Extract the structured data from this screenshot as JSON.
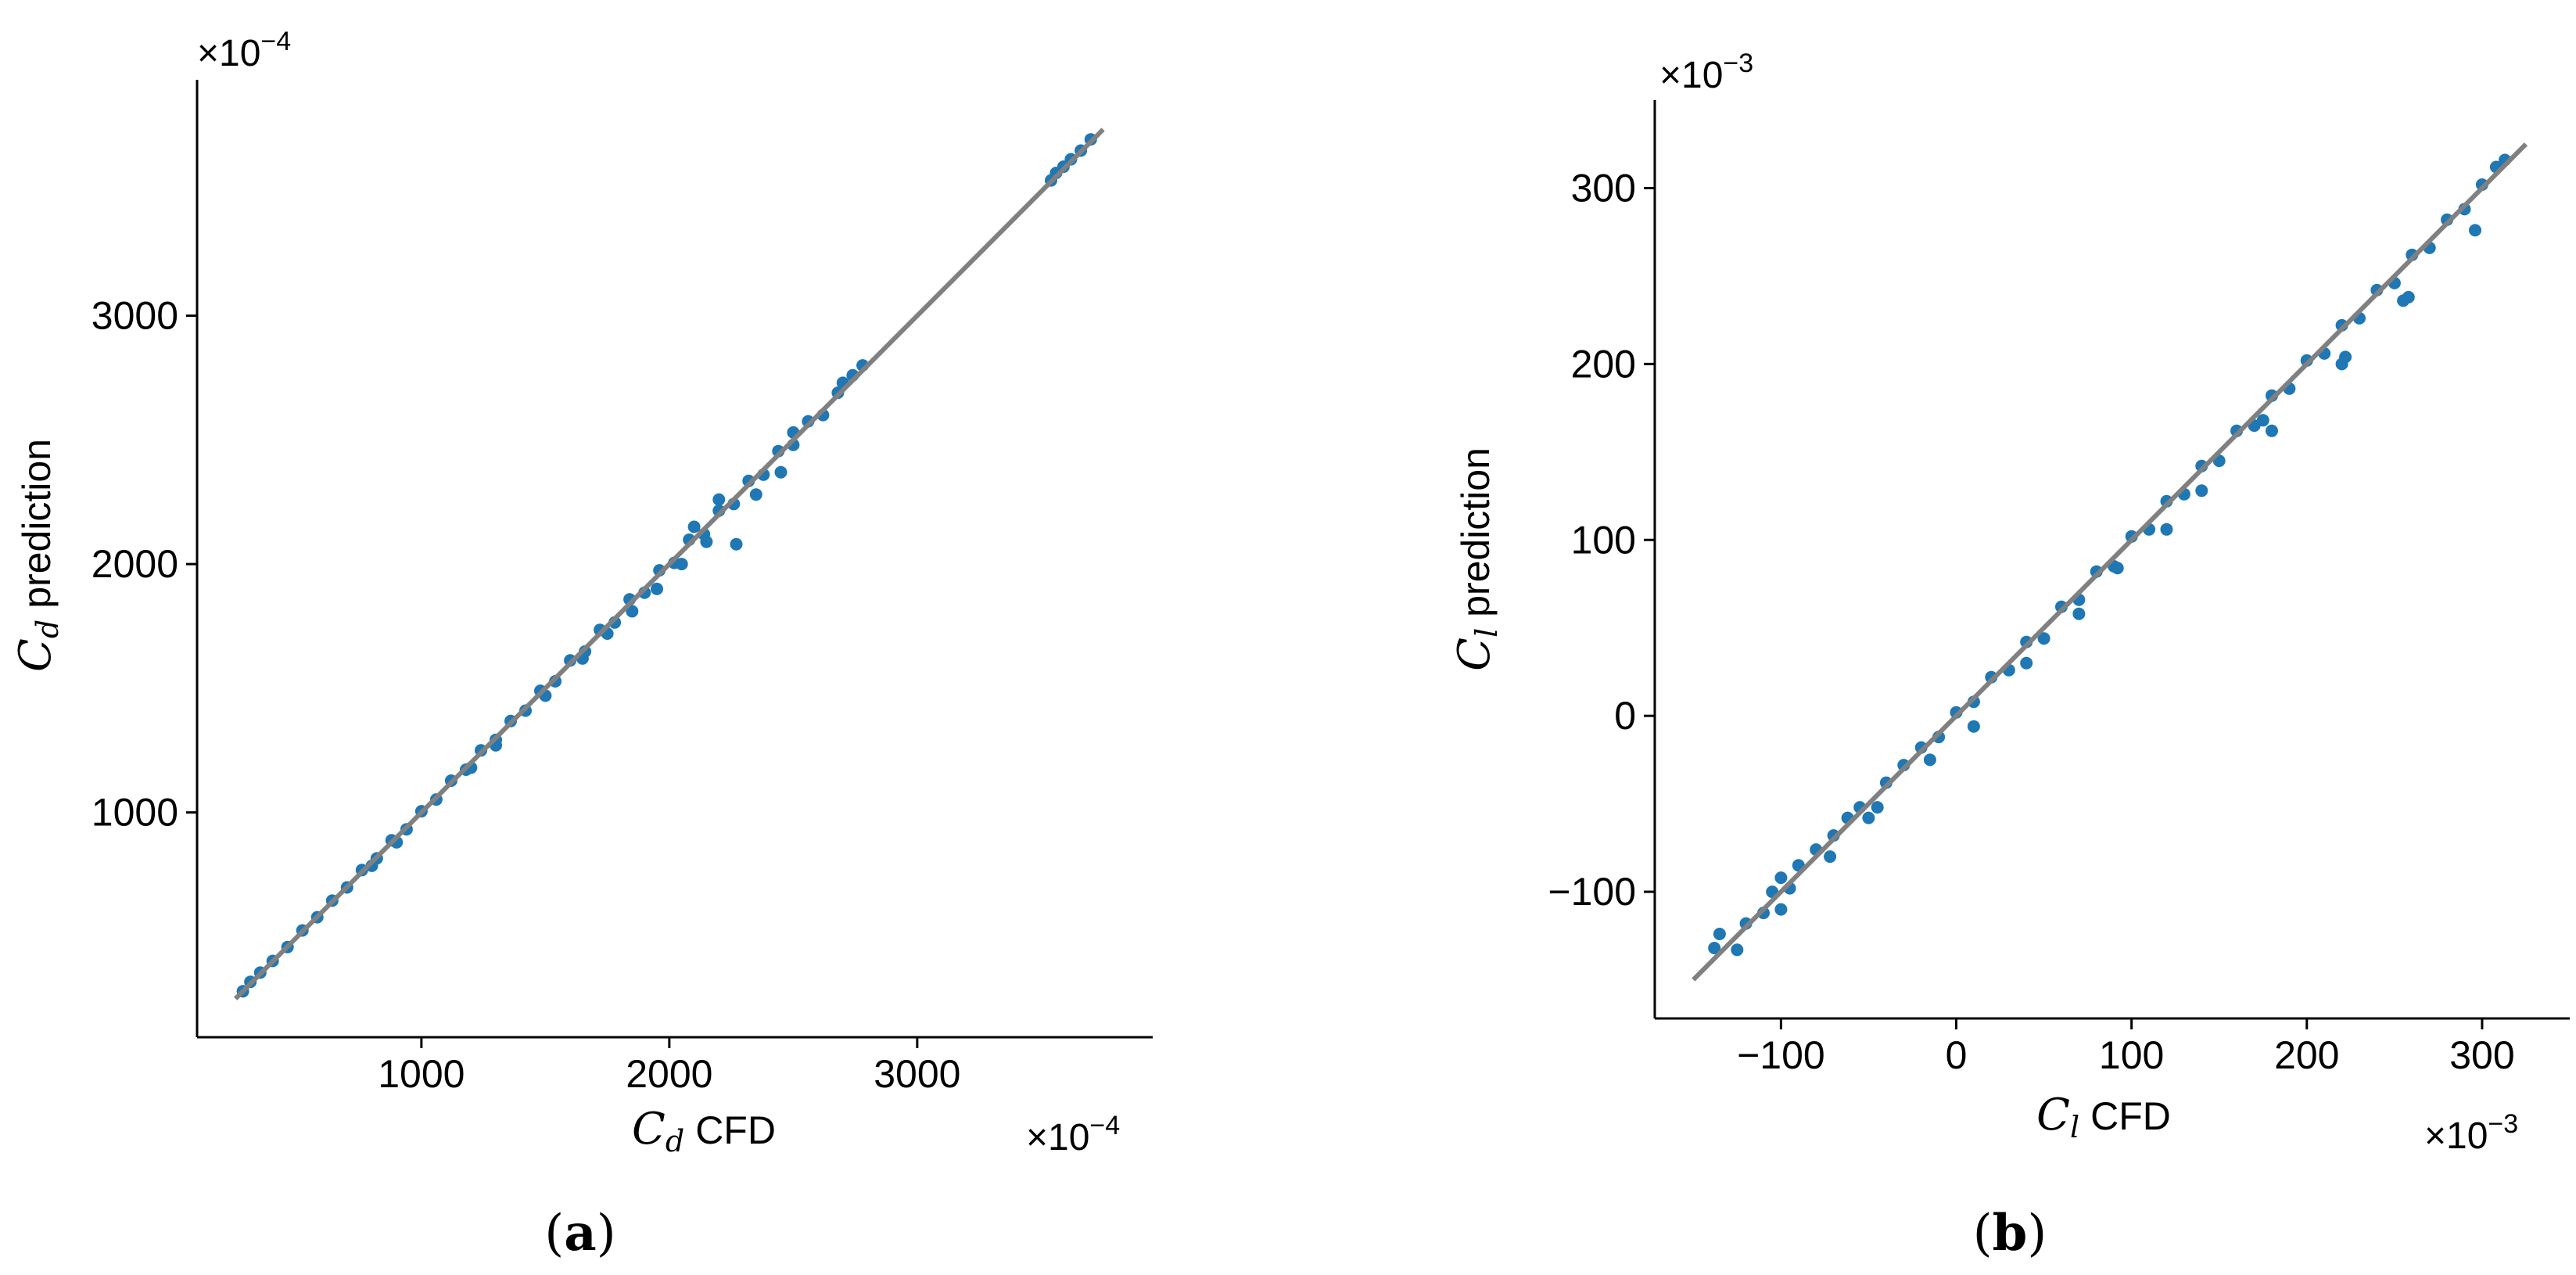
{
  "colors": {
    "points": "#1f77b4",
    "reference_line": "#808080",
    "axes": "#000000"
  },
  "chart_data": [
    {
      "type": "scatter",
      "panel_label": {
        "open": "(",
        "letter": "a",
        "close": ")"
      },
      "xlabel": {
        "symbol": "C",
        "subscript": "d",
        "text": "CFD"
      },
      "ylabel": {
        "symbol": "C",
        "subscript": "d",
        "text": "prediction"
      },
      "x_multiplier": {
        "base": "×10",
        "exponent": "−4"
      },
      "y_multiplier": {
        "base": "×10",
        "exponent": "−4"
      },
      "xlim": [
        95,
        3950
      ],
      "ylim": [
        95,
        3950
      ],
      "xticks": [
        1000,
        2000,
        3000
      ],
      "yticks": [
        1000,
        2000,
        3000
      ],
      "xtick_labels": [
        "1000",
        "2000",
        "3000"
      ],
      "ytick_labels": [
        "1000",
        "2000",
        "3000"
      ],
      "reference_line": [
        [
          250,
          250
        ],
        [
          3750,
          3750
        ]
      ],
      "grid": false,
      "points": [
        [
          280,
          280
        ],
        [
          310,
          318
        ],
        [
          350,
          355
        ],
        [
          400,
          402
        ],
        [
          460,
          458
        ],
        [
          520,
          525
        ],
        [
          580,
          578
        ],
        [
          640,
          645
        ],
        [
          700,
          698
        ],
        [
          760,
          768
        ],
        [
          820,
          815
        ],
        [
          880,
          888
        ],
        [
          940,
          932
        ],
        [
          1000,
          1005
        ],
        [
          1060,
          1052
        ],
        [
          1120,
          1128
        ],
        [
          1180,
          1172
        ],
        [
          1240,
          1250
        ],
        [
          1300,
          1292
        ],
        [
          1360,
          1368
        ],
        [
          1420,
          1410
        ],
        [
          1480,
          1490
        ],
        [
          1540,
          1528
        ],
        [
          1600,
          1612
        ],
        [
          1660,
          1648
        ],
        [
          1720,
          1735
        ],
        [
          1780,
          1765
        ],
        [
          1840,
          1858
        ],
        [
          1900,
          1885
        ],
        [
          1960,
          1975
        ],
        [
          2020,
          2005
        ],
        [
          2080,
          2098
        ],
        [
          2140,
          2120
        ],
        [
          2200,
          2215
        ],
        [
          2260,
          2242
        ],
        [
          2320,
          2335
        ],
        [
          2380,
          2360
        ],
        [
          2440,
          2455
        ],
        [
          2500,
          2480
        ],
        [
          2560,
          2575
        ],
        [
          2620,
          2600
        ],
        [
          2680,
          2690
        ],
        [
          2740,
          2760
        ],
        [
          2780,
          2800
        ],
        [
          1750,
          1720
        ],
        [
          1850,
          1810
        ],
        [
          1950,
          1900
        ],
        [
          2050,
          2000
        ],
        [
          2150,
          2090
        ],
        [
          2270,
          2080
        ],
        [
          2350,
          2280
        ],
        [
          2450,
          2370
        ],
        [
          2100,
          2150
        ],
        [
          2200,
          2260
        ],
        [
          1300,
          1270
        ],
        [
          1200,
          1180
        ],
        [
          1500,
          1470
        ],
        [
          1650,
          1620
        ],
        [
          900,
          880
        ],
        [
          800,
          785
        ],
        [
          2500,
          2530
        ],
        [
          2700,
          2730
        ],
        [
          3540,
          3545
        ],
        [
          3560,
          3575
        ],
        [
          3590,
          3600
        ],
        [
          3620,
          3630
        ],
        [
          3660,
          3665
        ],
        [
          3700,
          3710
        ]
      ]
    },
    {
      "type": "scatter",
      "panel_label": {
        "open": "(",
        "letter": "b",
        "close": ")"
      },
      "xlabel": {
        "symbol": "C",
        "subscript": "l",
        "text": "CFD"
      },
      "ylabel": {
        "symbol": "C",
        "subscript": "l",
        "text": "prediction"
      },
      "x_multiplier": {
        "base": "×10",
        "exponent": "−3"
      },
      "y_multiplier": {
        "base": "×10",
        "exponent": "−3"
      },
      "xlim": [
        -172,
        350
      ],
      "ylim": [
        -172,
        350
      ],
      "xticks": [
        -100,
        0,
        100,
        200,
        300
      ],
      "yticks": [
        -100,
        0,
        100,
        200,
        300
      ],
      "xtick_labels": [
        "−100",
        "0",
        "100",
        "200",
        "300"
      ],
      "ytick_labels": [
        "−100",
        "0",
        "100",
        "200",
        "300"
      ],
      "reference_line": [
        [
          -150,
          -150
        ],
        [
          325,
          325
        ]
      ],
      "grid": false,
      "points": [
        [
          -135,
          -124
        ],
        [
          -138,
          -132
        ],
        [
          -125,
          -133
        ],
        [
          -120,
          -118
        ],
        [
          -110,
          -112
        ],
        [
          -105,
          -100
        ],
        [
          -100,
          -92
        ],
        [
          -95,
          -98
        ],
        [
          -90,
          -85
        ],
        [
          -80,
          -76
        ],
        [
          -70,
          -68
        ],
        [
          -62,
          -58
        ],
        [
          -55,
          -52
        ],
        [
          -50,
          -58
        ],
        [
          -40,
          -38
        ],
        [
          -30,
          -28
        ],
        [
          -20,
          -18
        ],
        [
          -10,
          -12
        ],
        [
          0,
          2
        ],
        [
          10,
          8
        ],
        [
          20,
          22
        ],
        [
          30,
          26
        ],
        [
          40,
          42
        ],
        [
          50,
          44
        ],
        [
          60,
          62
        ],
        [
          70,
          66
        ],
        [
          80,
          82
        ],
        [
          90,
          85
        ],
        [
          100,
          102
        ],
        [
          110,
          106
        ],
        [
          120,
          122
        ],
        [
          130,
          126
        ],
        [
          140,
          142
        ],
        [
          150,
          145
        ],
        [
          160,
          162
        ],
        [
          170,
          165
        ],
        [
          180,
          182
        ],
        [
          190,
          186
        ],
        [
          200,
          202
        ],
        [
          210,
          206
        ],
        [
          220,
          222
        ],
        [
          230,
          226
        ],
        [
          240,
          242
        ],
        [
          250,
          246
        ],
        [
          260,
          262
        ],
        [
          270,
          266
        ],
        [
          280,
          282
        ],
        [
          290,
          288
        ],
        [
          300,
          302
        ],
        [
          308,
          312
        ],
        [
          313,
          316
        ],
        [
          296,
          276
        ],
        [
          255,
          236
        ],
        [
          258,
          238
        ],
        [
          220,
          200
        ],
        [
          222,
          204
        ],
        [
          180,
          162
        ],
        [
          175,
          168
        ],
        [
          140,
          128
        ],
        [
          120,
          106
        ],
        [
          92,
          84
        ],
        [
          70,
          58
        ],
        [
          40,
          30
        ],
        [
          10,
          -6
        ],
        [
          -15,
          -25
        ],
        [
          -45,
          -52
        ],
        [
          -72,
          -80
        ],
        [
          -100,
          -110
        ]
      ]
    }
  ]
}
